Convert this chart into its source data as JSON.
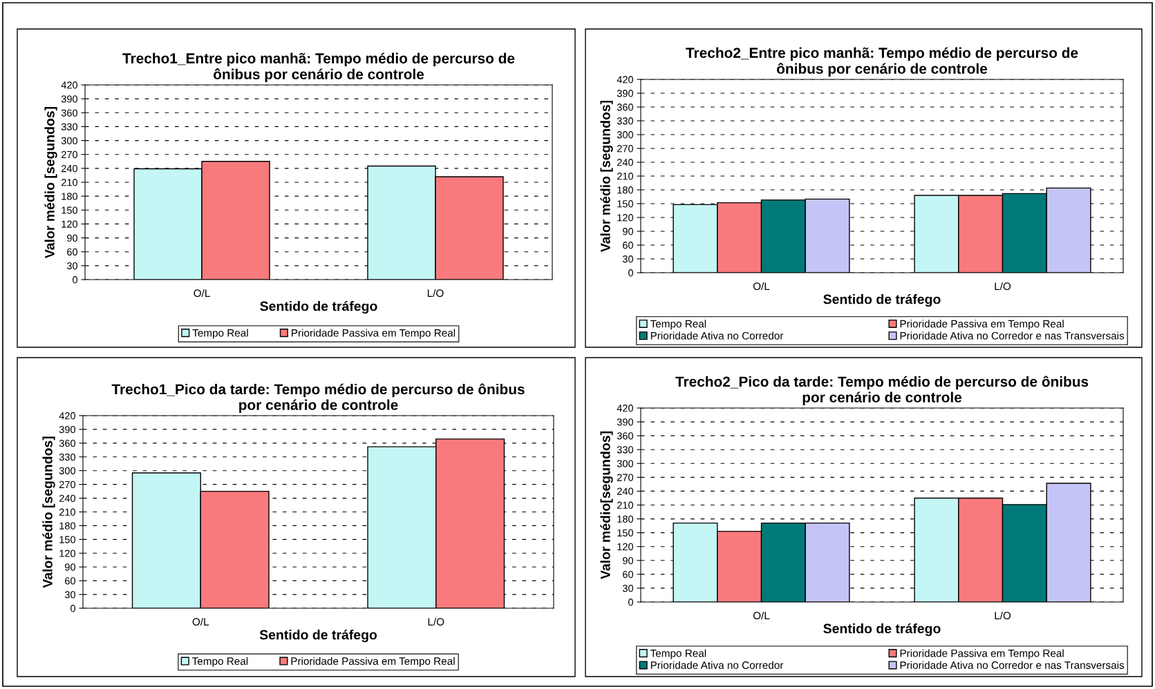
{
  "chart_data": [
    {
      "type": "bar",
      "title": "Trecho1_Entre pico manhã: Tempo médio de percurso de\nônibus por cenário de controle",
      "xlabel": "Sentido de tráfego",
      "ylabel": "Valor médio [segundos]",
      "categories": [
        "O/L",
        "L/O"
      ],
      "ylim": [
        0,
        420
      ],
      "yticks": [
        0,
        30,
        60,
        90,
        120,
        150,
        180,
        210,
        240,
        270,
        300,
        330,
        360,
        390,
        420
      ],
      "grid": "y",
      "legend": "bottom",
      "series": [
        {
          "name": "Tempo Real",
          "color": "#c4f6f6",
          "values": [
            239,
            245
          ]
        },
        {
          "name": "Prioridade Passiva em Tempo Real",
          "color": "#f87a7c",
          "values": [
            255,
            222
          ]
        }
      ]
    },
    {
      "type": "bar",
      "title": "Trecho2_Entre pico manhã: Tempo médio de percurso de\nônibus por cenário de controle",
      "xlabel": "Sentido de tráfego",
      "ylabel": "Valor médio [segundos]",
      "categories": [
        "O/L",
        "L/O"
      ],
      "ylim": [
        0,
        420
      ],
      "yticks": [
        0,
        30,
        60,
        90,
        120,
        150,
        180,
        210,
        240,
        270,
        300,
        330,
        360,
        390,
        420
      ],
      "grid": "y",
      "legend": "bottom",
      "series": [
        {
          "name": "Tempo Real",
          "color": "#c4f6f6",
          "values": [
            148,
            168
          ]
        },
        {
          "name": "Prioridade Passiva em Tempo Real",
          "color": "#f87a7c",
          "values": [
            152,
            168
          ]
        },
        {
          "name": "Prioridade Ativa no Corredor",
          "color": "#007a78",
          "values": [
            158,
            172
          ]
        },
        {
          "name": "Prioridade Ativa no Corredor e nas Transversais",
          "color": "#c4c4f6",
          "values": [
            160,
            184
          ]
        }
      ]
    },
    {
      "type": "bar",
      "title": "Trecho1_Pico da tarde: Tempo médio de percurso de ônibus\npor cenário de controle",
      "xlabel": "Sentido de tráfego",
      "ylabel": "Valor médio [segundos]",
      "categories": [
        "O/L",
        "L/O"
      ],
      "ylim": [
        0,
        420
      ],
      "yticks": [
        0,
        30,
        60,
        90,
        120,
        150,
        180,
        210,
        240,
        270,
        300,
        330,
        360,
        390,
        420
      ],
      "grid": "y",
      "legend": "bottom",
      "series": [
        {
          "name": "Tempo Real",
          "color": "#c4f6f6",
          "values": [
            295,
            352
          ]
        },
        {
          "name": "Prioridade Passiva em Tempo Real",
          "color": "#f87a7c",
          "values": [
            255,
            369
          ]
        }
      ]
    },
    {
      "type": "bar",
      "title": "Trecho2_Pico da tarde: Tempo médio de percurso de ônibus\npor cenário de controle",
      "xlabel": "Sentido de tráfego",
      "ylabel": "Valor médio[segundos]",
      "categories": [
        "O/L",
        "L/O"
      ],
      "ylim": [
        0,
        420
      ],
      "yticks": [
        0,
        30,
        60,
        90,
        120,
        150,
        180,
        210,
        240,
        270,
        300,
        330,
        360,
        390,
        420
      ],
      "grid": "y",
      "legend": "bottom",
      "series": [
        {
          "name": "Tempo Real",
          "color": "#c4f6f6",
          "values": [
            171,
            225
          ]
        },
        {
          "name": "Prioridade Passiva em Tempo Real",
          "color": "#f87a7c",
          "values": [
            153,
            225
          ]
        },
        {
          "name": "Prioridade Ativa no Corredor",
          "color": "#007a78",
          "values": [
            171,
            211
          ]
        },
        {
          "name": "Prioridade Ativa no Corredor e nas Transversais",
          "color": "#c4c4f6",
          "values": [
            171,
            257
          ]
        }
      ]
    }
  ]
}
